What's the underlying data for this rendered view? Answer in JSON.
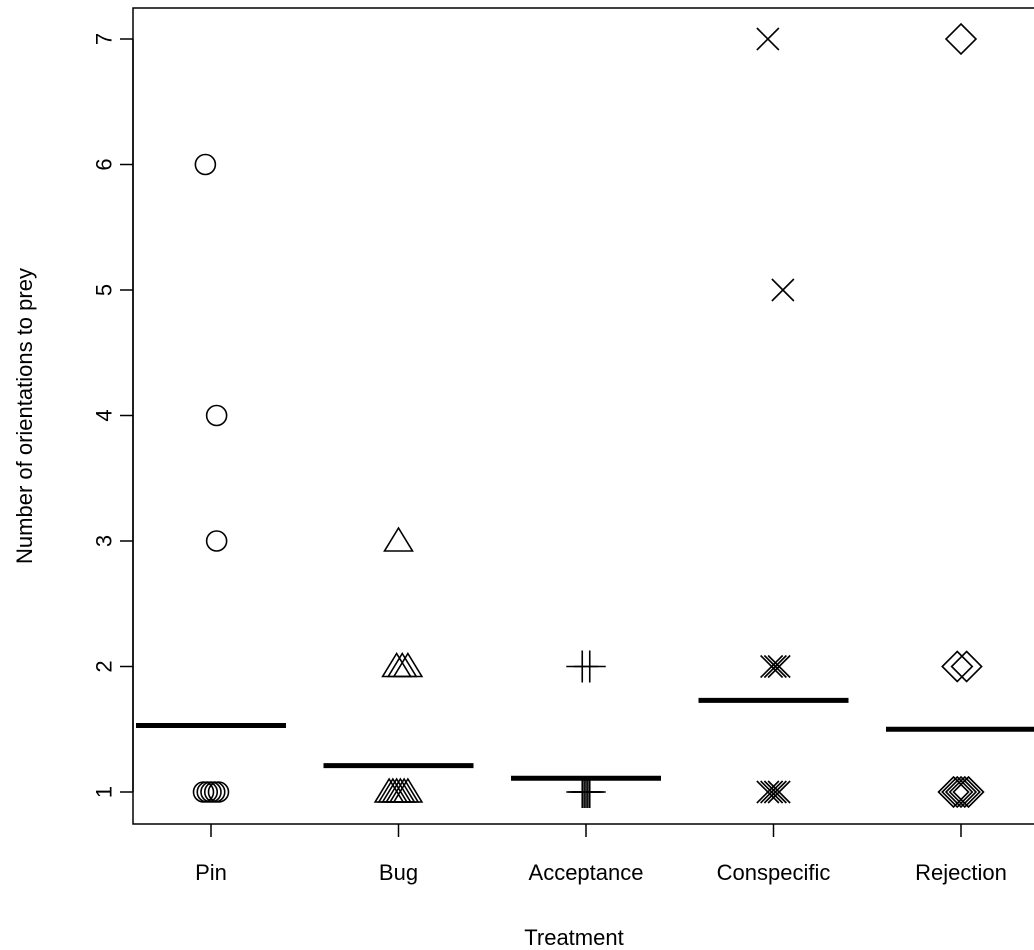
{
  "chart_data": {
    "type": "scatter",
    "xlabel": "Treatment",
    "ylabel": "Number of orientations to prey",
    "categories": [
      "Pin",
      "Bug",
      "Acceptance",
      "Conspecific",
      "Rejection"
    ],
    "yticks": [
      1,
      2,
      3,
      4,
      5,
      6,
      7
    ],
    "ylim": [
      0.75,
      7.25
    ],
    "grid": false,
    "series": [
      {
        "category": "Pin",
        "marker": "circle",
        "mean": 1.53,
        "points": [
          {
            "x": -0.04,
            "y": 1
          },
          {
            "x": -0.02,
            "y": 1
          },
          {
            "x": 0.0,
            "y": 1
          },
          {
            "x": 0.02,
            "y": 1
          },
          {
            "x": 0.04,
            "y": 1
          },
          {
            "x": 0.03,
            "y": 3
          },
          {
            "x": 0.03,
            "y": 4
          },
          {
            "x": -0.03,
            "y": 6
          }
        ]
      },
      {
        "category": "Bug",
        "marker": "triangle",
        "mean": 1.21,
        "points": [
          {
            "x": -0.05,
            "y": 1
          },
          {
            "x": -0.03,
            "y": 1
          },
          {
            "x": -0.01,
            "y": 1
          },
          {
            "x": 0.01,
            "y": 1
          },
          {
            "x": 0.03,
            "y": 1
          },
          {
            "x": 0.05,
            "y": 1
          },
          {
            "x": -0.01,
            "y": 2
          },
          {
            "x": 0.02,
            "y": 2
          },
          {
            "x": 0.05,
            "y": 2
          },
          {
            "x": 0.0,
            "y": 3
          }
        ]
      },
      {
        "category": "Acceptance",
        "marker": "plus",
        "mean": 1.11,
        "points": [
          {
            "x": -0.02,
            "y": 1
          },
          {
            "x": -0.01,
            "y": 1
          },
          {
            "x": 0.0,
            "y": 1
          },
          {
            "x": 0.01,
            "y": 1
          },
          {
            "x": 0.02,
            "y": 1
          },
          {
            "x": -0.02,
            "y": 2
          },
          {
            "x": 0.02,
            "y": 2
          }
        ]
      },
      {
        "category": "Conspecific",
        "marker": "cross",
        "mean": 1.73,
        "points": [
          {
            "x": -0.03,
            "y": 1
          },
          {
            "x": -0.01,
            "y": 1
          },
          {
            "x": 0.01,
            "y": 1
          },
          {
            "x": 0.03,
            "y": 1
          },
          {
            "x": -0.01,
            "y": 2
          },
          {
            "x": 0.01,
            "y": 2
          },
          {
            "x": 0.03,
            "y": 2
          },
          {
            "x": 0.05,
            "y": 5
          },
          {
            "x": -0.03,
            "y": 7
          }
        ]
      },
      {
        "category": "Rejection",
        "marker": "diamond",
        "mean": 1.5,
        "points": [
          {
            "x": -0.04,
            "y": 1
          },
          {
            "x": -0.02,
            "y": 1
          },
          {
            "x": 0.0,
            "y": 1
          },
          {
            "x": 0.02,
            "y": 1
          },
          {
            "x": 0.04,
            "y": 1
          },
          {
            "x": -0.02,
            "y": 2
          },
          {
            "x": 0.03,
            "y": 2
          },
          {
            "x": 0.0,
            "y": 7
          }
        ]
      }
    ]
  }
}
